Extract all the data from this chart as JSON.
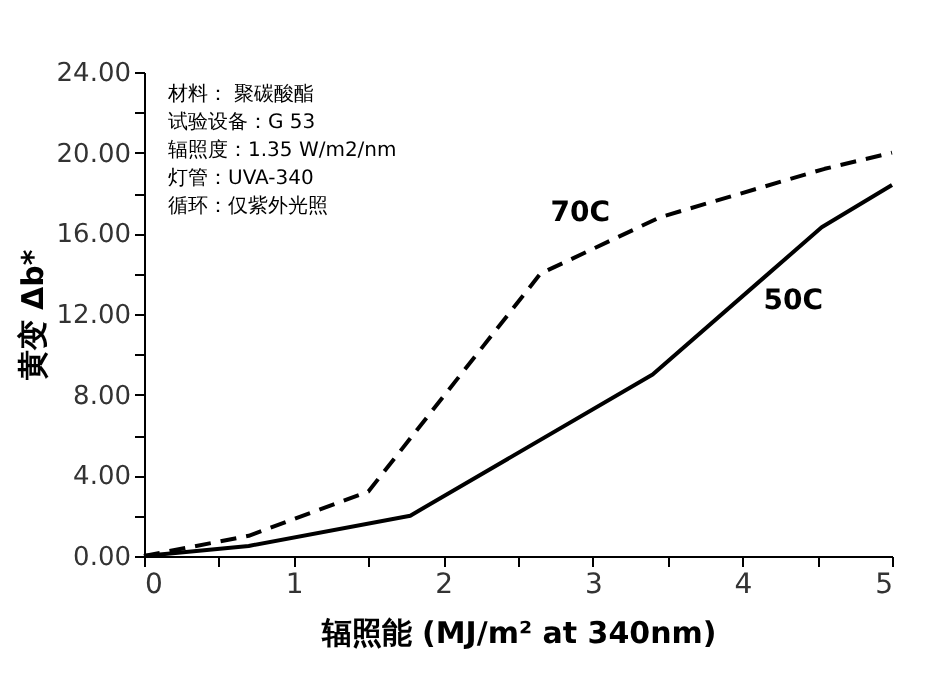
{
  "chart_data": {
    "type": "line",
    "xlabel": "辐照能 (MJ/m² at 340nm)",
    "ylabel": "黄变 Δb*",
    "annotations": [
      "材料： 聚碳酸酯",
      "试验设备：G 53",
      "辐照度：1.35 W/m2/nm",
      "灯管：UVA-340",
      "循环：仅紫外光照"
    ],
    "series": [
      {
        "name": "70C",
        "color": "#000000",
        "line_style": "dashed",
        "x": [
          0,
          0.7,
          1.5,
          2.65,
          3.45,
          4.55,
          5
        ],
        "values": [
          0,
          1.0,
          3.2,
          14.0,
          16.8,
          19.2,
          20.0
        ]
      },
      {
        "name": "50C",
        "color": "#000000",
        "line_style": "solid",
        "x": [
          0,
          0.7,
          1.78,
          3.4,
          4.53,
          5
        ],
        "values": [
          0,
          0.5,
          2.0,
          9.0,
          16.3,
          18.4
        ]
      }
    ],
    "xlim": [
      0,
      5
    ],
    "xticks": [
      0,
      {
        "value": 0.5,
        "label": null
      },
      1,
      {
        "value": 1.5,
        "label": null
      },
      2,
      {
        "value": 2.5,
        "label": null
      },
      3,
      {
        "value": 3.5,
        "label": null
      },
      4,
      {
        "value": 4.5,
        "label": null
      },
      5
    ],
    "ylim": [
      0,
      24
    ],
    "yticks": [
      {
        "value": 0,
        "label": "0.00"
      },
      {
        "value": 2,
        "label": null
      },
      {
        "value": 4,
        "label": "4.00"
      },
      {
        "value": 6,
        "label": null
      },
      {
        "value": 8,
        "label": "8.00"
      },
      {
        "value": 10,
        "label": null
      },
      {
        "value": 12,
        "label": "12.00"
      },
      {
        "value": 14,
        "label": null
      },
      {
        "value": 16,
        "label": "16.00"
      },
      {
        "value": 18,
        "label": null
      },
      {
        "value": 20,
        "label": "20.00"
      },
      {
        "value": 22,
        "label": null
      },
      {
        "value": 24,
        "label": "24.00"
      }
    ],
    "grid": false,
    "legend": false,
    "marker": "none"
  }
}
